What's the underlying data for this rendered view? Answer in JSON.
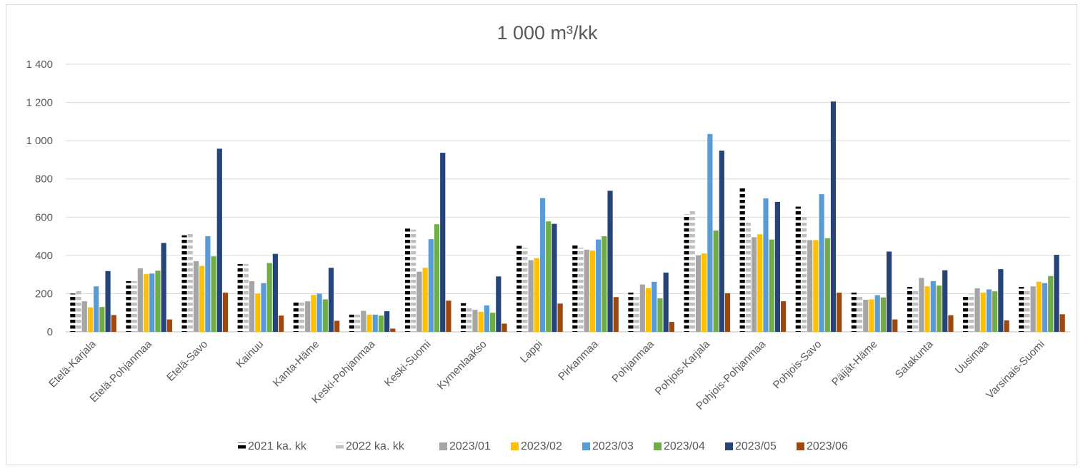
{
  "chart_data": {
    "type": "bar",
    "title": "1 000 m³/kk",
    "xlabel": "",
    "ylabel": "",
    "ylim": [
      0,
      1400
    ],
    "yticks": [
      0,
      200,
      400,
      600,
      800,
      1000,
      1200,
      1400
    ],
    "ytick_labels": [
      "0",
      "200",
      "400",
      "600",
      "800",
      "1 000",
      "1 200",
      "1 400"
    ],
    "grid": true,
    "legend_position": "bottom",
    "categories": [
      "Etelä-Karjala",
      "Etelä-Pohjanmaa",
      "Etelä-Savo",
      "Kainuu",
      "Kanta-Häme",
      "Keski-Pohjanmaa",
      "Keski-Suomi",
      "Kymenlaakso",
      "Lappi",
      "Pirkanmaa",
      "Pohjanmaa",
      "Pohjois-Karjala",
      "Pohjois-Pohjanmaa",
      "Pohjois-Savo",
      "Päijät-Häme",
      "Satakunta",
      "Uusimaa",
      "Varsinais-Suomi"
    ],
    "series": [
      {
        "name": "2021 ka. kk",
        "color": "#000000",
        "pattern": "dashed-black",
        "values": [
          200,
          265,
          505,
          355,
          165,
          90,
          540,
          150,
          450,
          460,
          205,
          615,
          760,
          655,
          205,
          235,
          195,
          235
        ]
      },
      {
        "name": "2022 ka. kk",
        "color": "#bfbfbf",
        "pattern": "dashed-gray",
        "values": [
          225,
          265,
          525,
          355,
          165,
          90,
          535,
          130,
          440,
          440,
          195,
          635,
          575,
          615,
          195,
          220,
          200,
          220
        ]
      },
      {
        "name": "2023/01",
        "color": "#a5a5a5",
        "values": [
          160,
          332,
          370,
          265,
          160,
          110,
          315,
          115,
          375,
          430,
          248,
          400,
          495,
          480,
          168,
          282,
          228,
          238
        ]
      },
      {
        "name": "2023/02",
        "color": "#ffc000",
        "values": [
          128,
          302,
          345,
          200,
          193,
          90,
          335,
          105,
          385,
          425,
          228,
          410,
          510,
          480,
          170,
          238,
          205,
          262
        ]
      },
      {
        "name": "2023/03",
        "color": "#5b9bd5",
        "values": [
          238,
          305,
          500,
          255,
          200,
          90,
          485,
          138,
          700,
          483,
          262,
          1035,
          698,
          720,
          192,
          265,
          222,
          255
        ]
      },
      {
        "name": "2023/04",
        "color": "#70ad47",
        "values": [
          130,
          320,
          395,
          360,
          170,
          85,
          563,
          100,
          578,
          500,
          175,
          530,
          483,
          490,
          180,
          242,
          212,
          292
        ]
      },
      {
        "name": "2023/05",
        "color": "#264478",
        "values": [
          318,
          465,
          958,
          408,
          335,
          108,
          937,
          290,
          565,
          738,
          310,
          948,
          680,
          1205,
          420,
          322,
          328,
          403
        ]
      },
      {
        "name": "2023/06",
        "color": "#9e480e",
        "values": [
          88,
          65,
          205,
          85,
          58,
          17,
          163,
          43,
          148,
          182,
          52,
          202,
          160,
          205,
          65,
          87,
          60,
          92
        ]
      }
    ]
  }
}
